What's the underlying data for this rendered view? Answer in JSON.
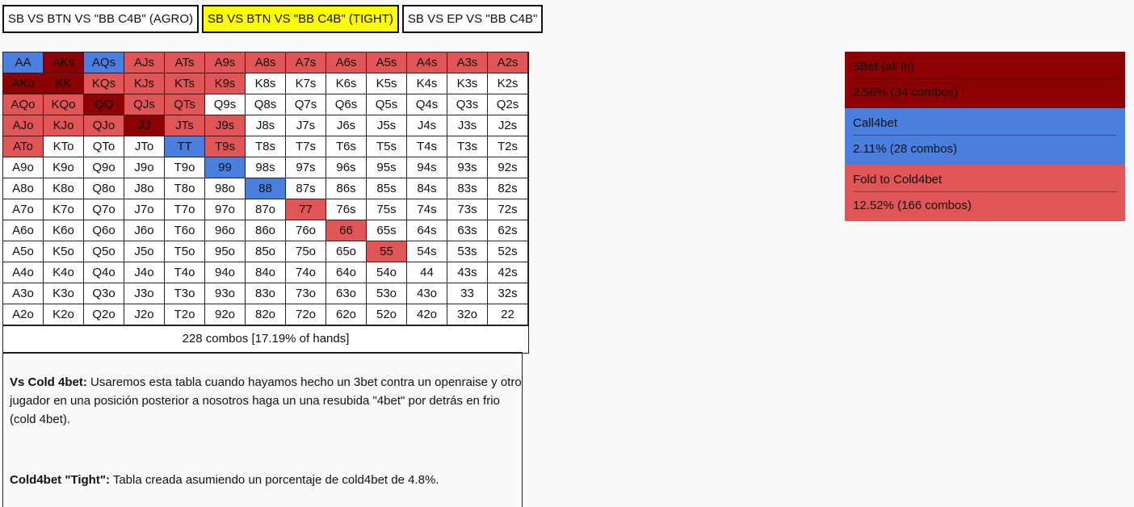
{
  "tabs": [
    {
      "label": "SB VS BTN VS \"BB C4B\" (AGRO)",
      "active": false
    },
    {
      "label": "SB VS BTN VS \"BB C4B\" (TIGHT)",
      "active": true
    },
    {
      "label": "SB VS EP VS \"BB C4B\"",
      "active": false
    }
  ],
  "colors": {
    "fivebet": "#8b0000",
    "call4bet": "#4a7fe0",
    "fold": "#e05555",
    "none": "#ffffff",
    "active_tab": "#ffff00"
  },
  "grid": [
    [
      [
        "AA",
        "b"
      ],
      [
        "AKs",
        "d"
      ],
      [
        "AQs",
        "b"
      ],
      [
        "AJs",
        "r"
      ],
      [
        "ATs",
        "r"
      ],
      [
        "A9s",
        "r"
      ],
      [
        "A8s",
        "r"
      ],
      [
        "A7s",
        "r"
      ],
      [
        "A6s",
        "r"
      ],
      [
        "A5s",
        "r"
      ],
      [
        "A4s",
        "r"
      ],
      [
        "A3s",
        "r"
      ],
      [
        "A2s",
        "r"
      ]
    ],
    [
      [
        "AKo",
        "d"
      ],
      [
        "KK",
        "d"
      ],
      [
        "KQs",
        "r"
      ],
      [
        "KJs",
        "r"
      ],
      [
        "KTs",
        "r"
      ],
      [
        "K9s",
        "r"
      ],
      [
        "K8s",
        "w"
      ],
      [
        "K7s",
        "w"
      ],
      [
        "K6s",
        "w"
      ],
      [
        "K5s",
        "w"
      ],
      [
        "K4s",
        "w"
      ],
      [
        "K3s",
        "w"
      ],
      [
        "K2s",
        "w"
      ]
    ],
    [
      [
        "AQo",
        "r"
      ],
      [
        "KQo",
        "r"
      ],
      [
        "QQ",
        "d"
      ],
      [
        "QJs",
        "r"
      ],
      [
        "QTs",
        "r"
      ],
      [
        "Q9s",
        "w"
      ],
      [
        "Q8s",
        "w"
      ],
      [
        "Q7s",
        "w"
      ],
      [
        "Q6s",
        "w"
      ],
      [
        "Q5s",
        "w"
      ],
      [
        "Q4s",
        "w"
      ],
      [
        "Q3s",
        "w"
      ],
      [
        "Q2s",
        "w"
      ]
    ],
    [
      [
        "AJo",
        "r"
      ],
      [
        "KJo",
        "r"
      ],
      [
        "QJo",
        "r"
      ],
      [
        "JJ",
        "d"
      ],
      [
        "JTs",
        "r"
      ],
      [
        "J9s",
        "r"
      ],
      [
        "J8s",
        "w"
      ],
      [
        "J7s",
        "w"
      ],
      [
        "J6s",
        "w"
      ],
      [
        "J5s",
        "w"
      ],
      [
        "J4s",
        "w"
      ],
      [
        "J3s",
        "w"
      ],
      [
        "J2s",
        "w"
      ]
    ],
    [
      [
        "ATo",
        "r"
      ],
      [
        "KTo",
        "w"
      ],
      [
        "QTo",
        "w"
      ],
      [
        "JTo",
        "w"
      ],
      [
        "TT",
        "b"
      ],
      [
        "T9s",
        "r"
      ],
      [
        "T8s",
        "w"
      ],
      [
        "T7s",
        "w"
      ],
      [
        "T6s",
        "w"
      ],
      [
        "T5s",
        "w"
      ],
      [
        "T4s",
        "w"
      ],
      [
        "T3s",
        "w"
      ],
      [
        "T2s",
        "w"
      ]
    ],
    [
      [
        "A9o",
        "w"
      ],
      [
        "K9o",
        "w"
      ],
      [
        "Q9o",
        "w"
      ],
      [
        "J9o",
        "w"
      ],
      [
        "T9o",
        "w"
      ],
      [
        "99",
        "b"
      ],
      [
        "98s",
        "w"
      ],
      [
        "97s",
        "w"
      ],
      [
        "96s",
        "w"
      ],
      [
        "95s",
        "w"
      ],
      [
        "94s",
        "w"
      ],
      [
        "93s",
        "w"
      ],
      [
        "92s",
        "w"
      ]
    ],
    [
      [
        "A8o",
        "w"
      ],
      [
        "K8o",
        "w"
      ],
      [
        "Q8o",
        "w"
      ],
      [
        "J8o",
        "w"
      ],
      [
        "T8o",
        "w"
      ],
      [
        "98o",
        "w"
      ],
      [
        "88",
        "b"
      ],
      [
        "87s",
        "w"
      ],
      [
        "86s",
        "w"
      ],
      [
        "85s",
        "w"
      ],
      [
        "84s",
        "w"
      ],
      [
        "83s",
        "w"
      ],
      [
        "82s",
        "w"
      ]
    ],
    [
      [
        "A7o",
        "w"
      ],
      [
        "K7o",
        "w"
      ],
      [
        "Q7o",
        "w"
      ],
      [
        "J7o",
        "w"
      ],
      [
        "T7o",
        "w"
      ],
      [
        "97o",
        "w"
      ],
      [
        "87o",
        "w"
      ],
      [
        "77",
        "r"
      ],
      [
        "76s",
        "w"
      ],
      [
        "75s",
        "w"
      ],
      [
        "74s",
        "w"
      ],
      [
        "73s",
        "w"
      ],
      [
        "72s",
        "w"
      ]
    ],
    [
      [
        "A6o",
        "w"
      ],
      [
        "K6o",
        "w"
      ],
      [
        "Q6o",
        "w"
      ],
      [
        "J6o",
        "w"
      ],
      [
        "T6o",
        "w"
      ],
      [
        "96o",
        "w"
      ],
      [
        "86o",
        "w"
      ],
      [
        "76o",
        "w"
      ],
      [
        "66",
        "r"
      ],
      [
        "65s",
        "w"
      ],
      [
        "64s",
        "w"
      ],
      [
        "63s",
        "w"
      ],
      [
        "62s",
        "w"
      ]
    ],
    [
      [
        "A5o",
        "w"
      ],
      [
        "K5o",
        "w"
      ],
      [
        "Q5o",
        "w"
      ],
      [
        "J5o",
        "w"
      ],
      [
        "T5o",
        "w"
      ],
      [
        "95o",
        "w"
      ],
      [
        "85o",
        "w"
      ],
      [
        "75o",
        "w"
      ],
      [
        "65o",
        "w"
      ],
      [
        "55",
        "r"
      ],
      [
        "54s",
        "w"
      ],
      [
        "53s",
        "w"
      ],
      [
        "52s",
        "w"
      ]
    ],
    [
      [
        "A4o",
        "w"
      ],
      [
        "K4o",
        "w"
      ],
      [
        "Q4o",
        "w"
      ],
      [
        "J4o",
        "w"
      ],
      [
        "T4o",
        "w"
      ],
      [
        "94o",
        "w"
      ],
      [
        "84o",
        "w"
      ],
      [
        "74o",
        "w"
      ],
      [
        "64o",
        "w"
      ],
      [
        "54o",
        "w"
      ],
      [
        "44",
        "w"
      ],
      [
        "43s",
        "w"
      ],
      [
        "42s",
        "w"
      ]
    ],
    [
      [
        "A3o",
        "w"
      ],
      [
        "K3o",
        "w"
      ],
      [
        "Q3o",
        "w"
      ],
      [
        "J3o",
        "w"
      ],
      [
        "T3o",
        "w"
      ],
      [
        "93o",
        "w"
      ],
      [
        "83o",
        "w"
      ],
      [
        "73o",
        "w"
      ],
      [
        "63o",
        "w"
      ],
      [
        "53o",
        "w"
      ],
      [
        "43o",
        "w"
      ],
      [
        "33",
        "w"
      ],
      [
        "32s",
        "w"
      ]
    ],
    [
      [
        "A2o",
        "w"
      ],
      [
        "K2o",
        "w"
      ],
      [
        "Q2o",
        "w"
      ],
      [
        "J2o",
        "w"
      ],
      [
        "T2o",
        "w"
      ],
      [
        "92o",
        "w"
      ],
      [
        "82o",
        "w"
      ],
      [
        "72o",
        "w"
      ],
      [
        "62o",
        "w"
      ],
      [
        "52o",
        "w"
      ],
      [
        "42o",
        "w"
      ],
      [
        "32o",
        "w"
      ],
      [
        "22",
        "w"
      ]
    ]
  ],
  "summary": "228 combos [17.19% of hands]",
  "description": {
    "p1_bold": "Vs Cold 4bet:",
    "p1_text": " Usaremos esta tabla cuando hayamos hecho un 3bet contra un openraise y otro jugador en una posición posterior a nosotros haga un una resubida \"4bet\" por detrás en frio (cold 4bet).",
    "p2_bold": "Cold4bet \"Tight\":",
    "p2_text": " Tabla creada asumiendo un porcentaje de cold4bet de 4.8%."
  },
  "legend": [
    {
      "label": "5Bet (all in)",
      "value": "2.56%  (34 combos)",
      "key": "fivebet"
    },
    {
      "label": "Call4bet",
      "value": "2.11%  (28 combos)",
      "key": "call"
    },
    {
      "label": "Fold to Cold4bet",
      "value": "12.52%  (166 combos)",
      "key": "fold"
    }
  ]
}
